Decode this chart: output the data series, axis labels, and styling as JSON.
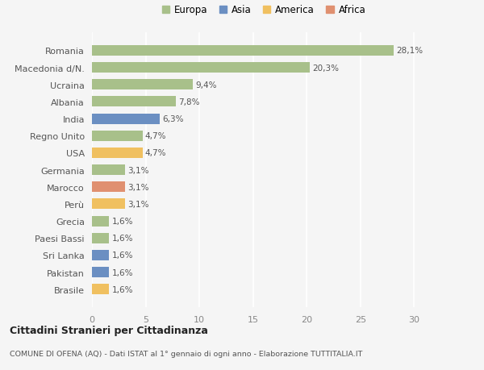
{
  "countries": [
    "Romania",
    "Macedonia d/N.",
    "Ucraina",
    "Albania",
    "India",
    "Regno Unito",
    "USA",
    "Germania",
    "Marocco",
    "Perù",
    "Grecia",
    "Paesi Bassi",
    "Sri Lanka",
    "Pakistan",
    "Brasile"
  ],
  "values": [
    28.1,
    20.3,
    9.4,
    7.8,
    6.3,
    4.7,
    4.7,
    3.1,
    3.1,
    3.1,
    1.6,
    1.6,
    1.6,
    1.6,
    1.6
  ],
  "labels": [
    "28,1%",
    "20,3%",
    "9,4%",
    "7,8%",
    "6,3%",
    "4,7%",
    "4,7%",
    "3,1%",
    "3,1%",
    "3,1%",
    "1,6%",
    "1,6%",
    "1,6%",
    "1,6%",
    "1,6%"
  ],
  "continents": [
    "Europa",
    "Europa",
    "Europa",
    "Europa",
    "Asia",
    "Europa",
    "America",
    "Europa",
    "Africa",
    "America",
    "Europa",
    "Europa",
    "Asia",
    "Asia",
    "America"
  ],
  "colors": {
    "Europa": "#a8c08a",
    "Asia": "#6b8fc2",
    "America": "#f0c060",
    "Africa": "#e09070"
  },
  "legend_order": [
    "Europa",
    "Asia",
    "America",
    "Africa"
  ],
  "xlim": [
    0,
    32
  ],
  "xticks": [
    0,
    5,
    10,
    15,
    20,
    25,
    30
  ],
  "background_color": "#f5f5f5",
  "grid_color": "#ffffff",
  "bar_height": 0.62,
  "title1": "Cittadini Stranieri per Cittadinanza",
  "title2": "COMUNE DI OFENA (AQ) - Dati ISTAT al 1° gennaio di ogni anno - Elaborazione TUTTITALIA.IT"
}
